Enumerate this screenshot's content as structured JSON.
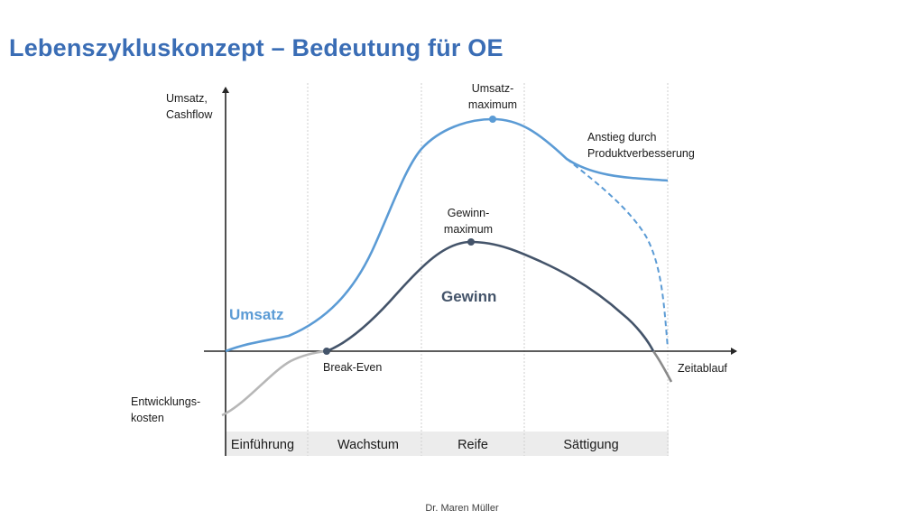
{
  "title": "Lebenszykluskonzept – Bedeutung für OE",
  "colors": {
    "title": "#3a6db5",
    "umsatz": "#5b9bd5",
    "gewinn": "#44546a",
    "kosten": "#b7b7b7",
    "phase_band": "#ececec",
    "axis": "#262626"
  },
  "axes": {
    "y_label_line1": "Umsatz,",
    "y_label_line2": "Cashflow",
    "x_label": "Zeitablauf"
  },
  "labels": {
    "umsatz": "Umsatz",
    "gewinn": "Gewinn",
    "umsatzmax_line1": "Umsatz-",
    "umsatzmax_line2": "maximum",
    "gewinnmax_line1": "Gewinn-",
    "gewinnmax_line2": "maximum",
    "anstieg_line1": "Anstieg durch",
    "anstieg_line2": "Produktverbesserung",
    "break_even": "Break-Even",
    "entwicklung_line1": "Entwicklungs-",
    "entwicklung_line2": "kosten"
  },
  "phases": [
    "Einführung",
    "Wachstum",
    "Reife",
    "Sättigung"
  ],
  "footer": "Dr. Maren Müller"
}
